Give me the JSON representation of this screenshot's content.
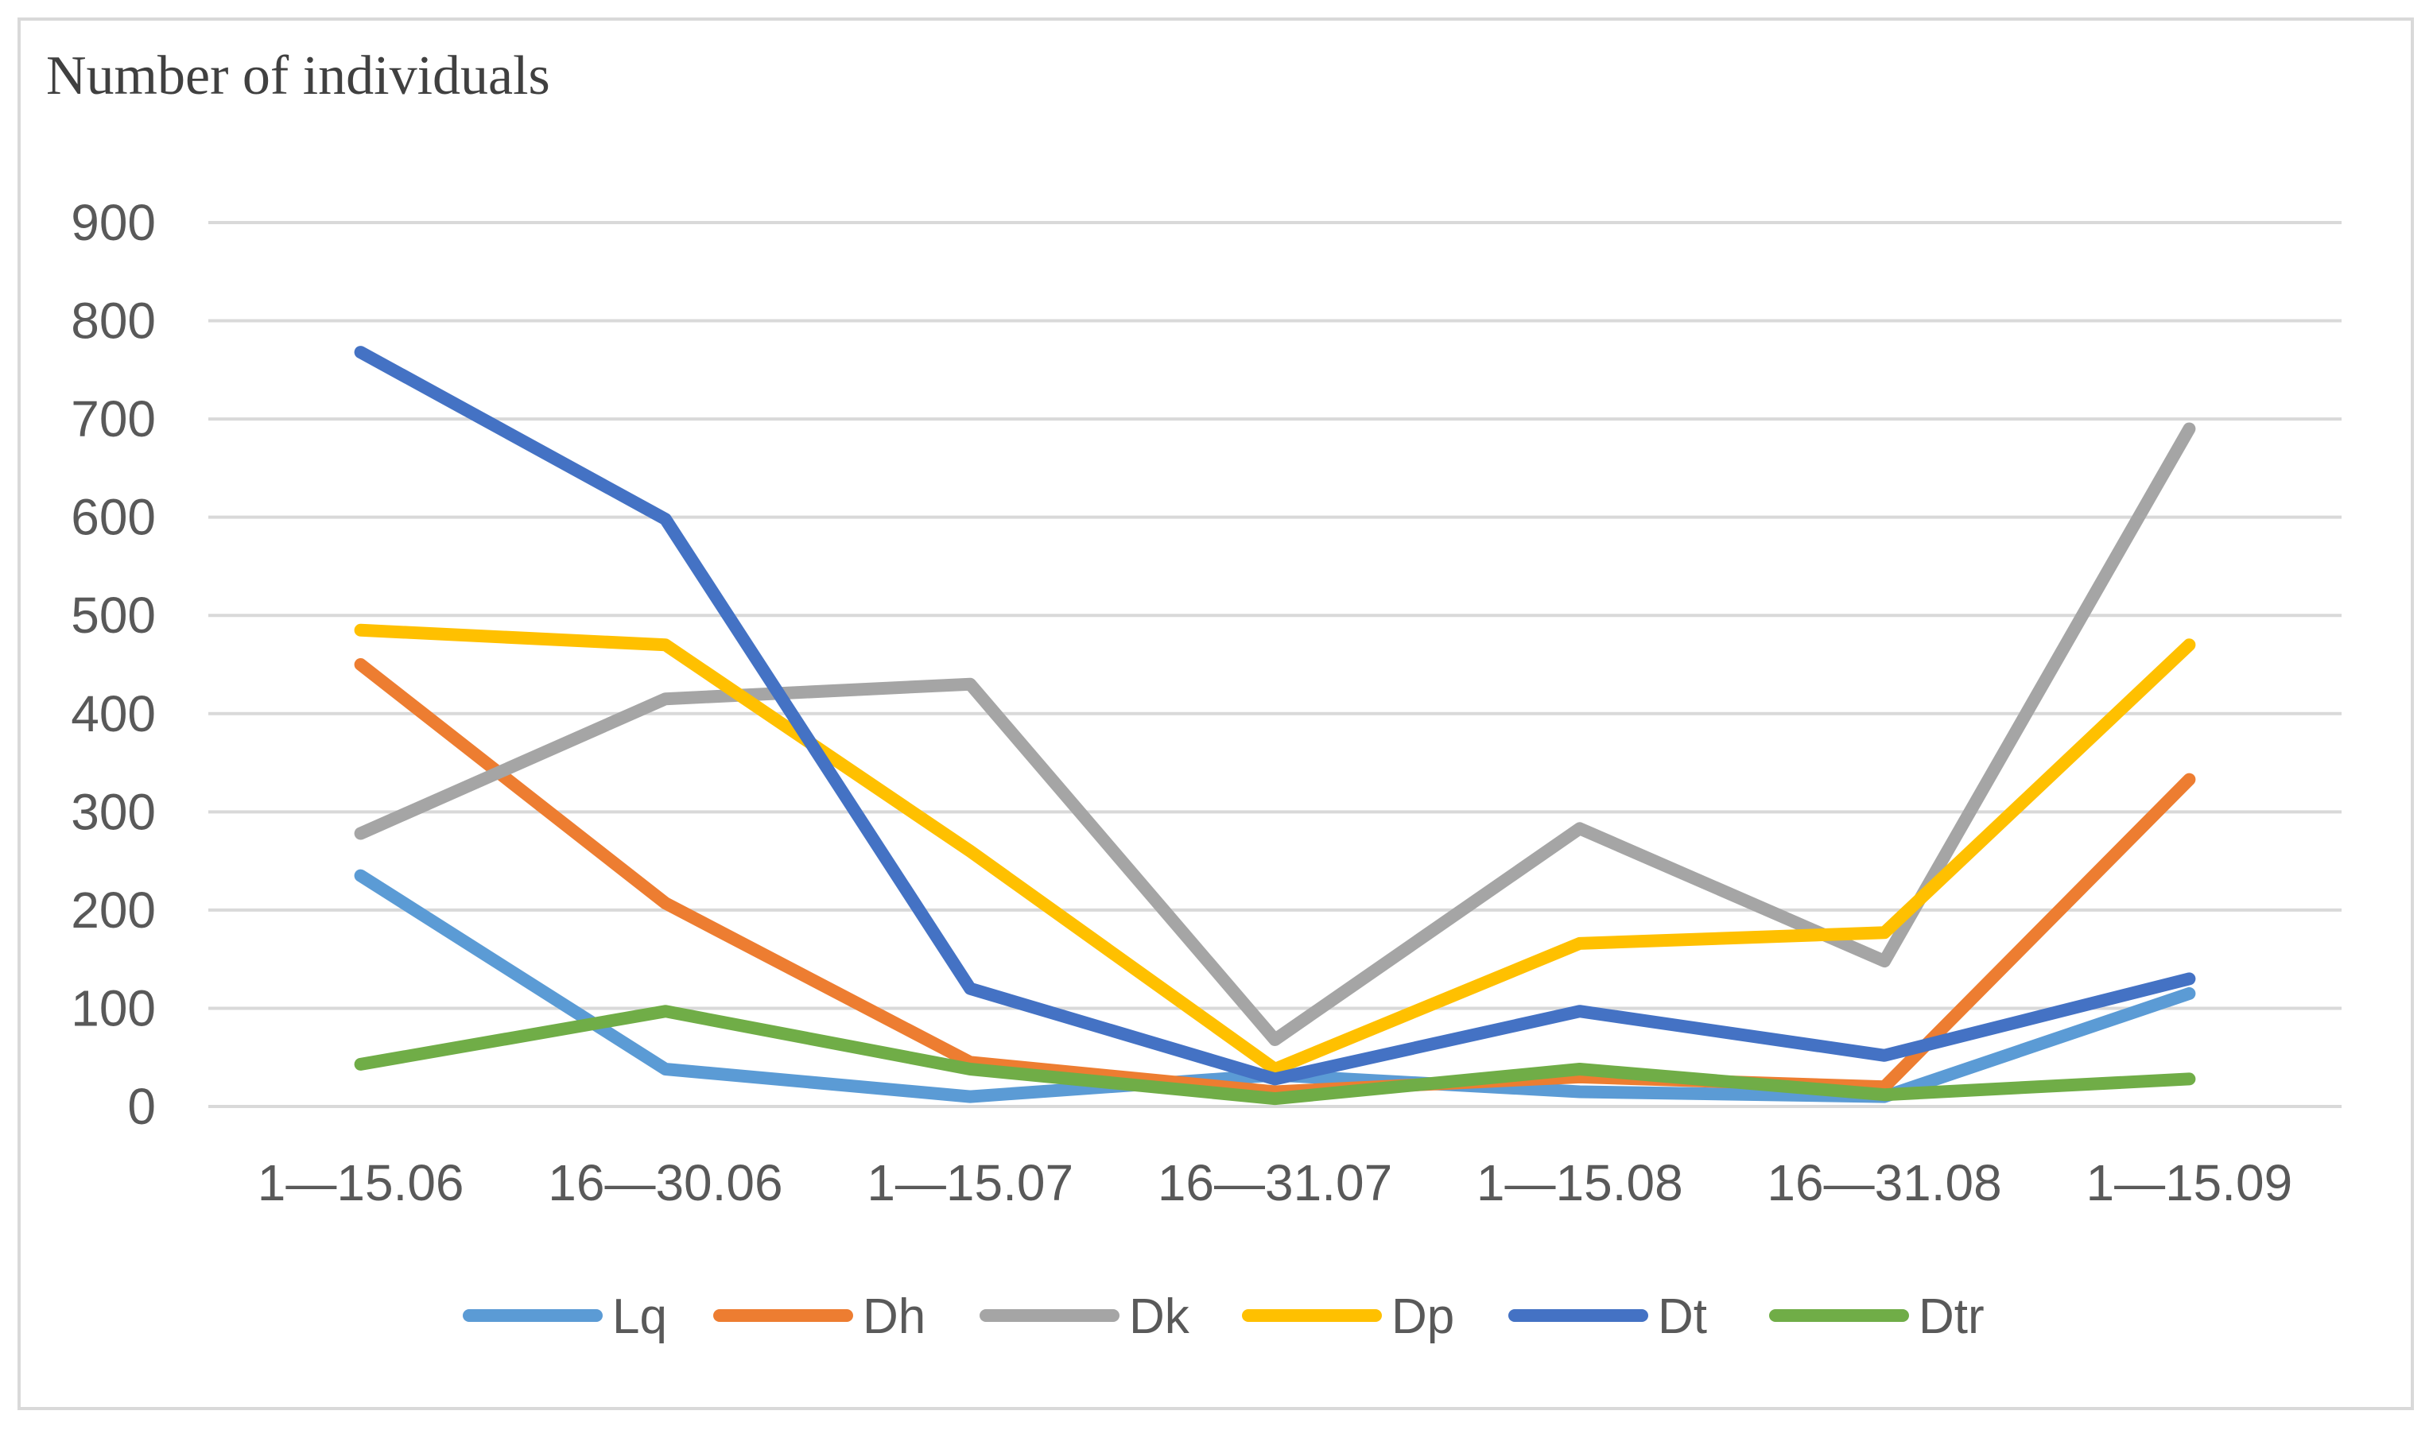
{
  "chart_data": {
    "type": "line",
    "title": "",
    "ylabel": "Number of individuals",
    "xlabel": "",
    "ylim": [
      0,
      900
    ],
    "yticks": [
      0,
      100,
      200,
      300,
      400,
      500,
      600,
      700,
      800,
      900
    ],
    "grid": true,
    "legend_position": "bottom",
    "categories": [
      "1—15.06",
      "16—30.06",
      "1—15.07",
      "16—31.07",
      "1—15.08",
      "16—31.08",
      "1—15.09"
    ],
    "series": [
      {
        "name": "Lq",
        "color": "#5b9bd5",
        "values": [
          235,
          38,
          10,
          32,
          15,
          10,
          115
        ]
      },
      {
        "name": "Dh",
        "color": "#ed7d31",
        "values": [
          450,
          207,
          45,
          15,
          30,
          20,
          333
        ]
      },
      {
        "name": "Dk",
        "color": "#a5a5a5",
        "values": [
          278,
          415,
          430,
          68,
          283,
          148,
          690
        ]
      },
      {
        "name": "Dp",
        "color": "#ffc000",
        "values": [
          485,
          470,
          260,
          38,
          166,
          177,
          470
        ]
      },
      {
        "name": "Dt",
        "color": "#4472c4",
        "values": [
          768,
          598,
          120,
          28,
          97,
          52,
          130
        ]
      },
      {
        "name": "Dtr",
        "color": "#70ad47",
        "values": [
          43,
          97,
          38,
          8,
          38,
          12,
          28
        ]
      }
    ]
  }
}
